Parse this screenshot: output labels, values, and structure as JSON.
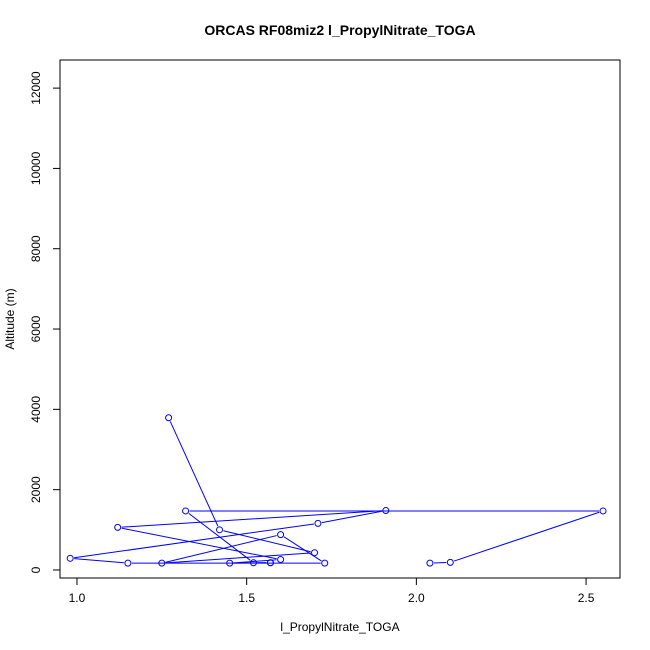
{
  "chart_data": {
    "type": "line",
    "title": "ORCAS RF08miz2 l_PropylNitrate_TOGA",
    "xlabel": "l_PropylNitrate_TOGA",
    "ylabel": "Altitude (m)",
    "xlim": [
      0.95,
      2.6
    ],
    "ylim": [
      -200,
      12700
    ],
    "x_ticks": [
      1.0,
      1.5,
      2.0,
      2.5
    ],
    "x_tick_labels": [
      "1.0",
      "1.5",
      "2.0",
      "2.5"
    ],
    "y_ticks": [
      0,
      2000,
      4000,
      6000,
      8000,
      10000,
      12000
    ],
    "y_tick_labels": [
      "0",
      "2000",
      "4000",
      "6000",
      "8000",
      "10000",
      "12000"
    ],
    "grid": false,
    "legend": "none",
    "series": [
      {
        "line_style": "line-with-open-circles",
        "color": "#0000ff",
        "points": [
          {
            "x": 1.27,
            "y": 3790
          },
          {
            "x": 1.42,
            "y": 1000
          },
          {
            "x": 1.7,
            "y": 430
          },
          {
            "x": 1.25,
            "y": 170
          },
          {
            "x": 1.6,
            "y": 880
          },
          {
            "x": 1.73,
            "y": 170
          },
          {
            "x": 1.15,
            "y": 170
          },
          {
            "x": 0.98,
            "y": 290
          },
          {
            "x": 1.71,
            "y": 1160
          },
          {
            "x": 1.91,
            "y": 1480
          },
          {
            "x": 1.12,
            "y": 1060
          },
          {
            "x": 1.6,
            "y": 260
          },
          {
            "x": 1.45,
            "y": 170
          },
          {
            "x": 1.57,
            "y": 180
          },
          {
            "x": 1.57,
            "y": 180
          },
          {
            "x": 1.52,
            "y": 180
          },
          {
            "x": 1.32,
            "y": 1470
          },
          {
            "x": 2.55,
            "y": 1470
          },
          {
            "x": 2.1,
            "y": 190
          },
          {
            "x": 2.04,
            "y": 170
          }
        ]
      }
    ]
  }
}
